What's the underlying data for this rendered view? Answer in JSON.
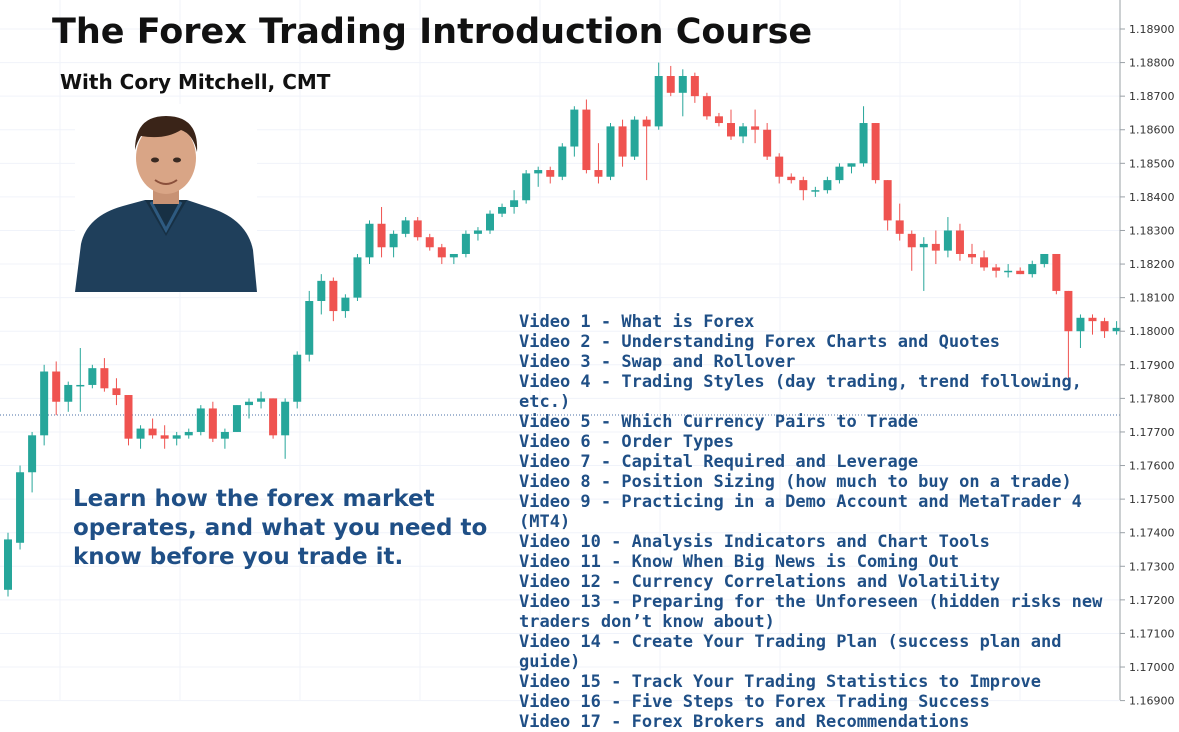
{
  "title": "The Forex Trading Introduction Course",
  "subtitle": "With Cory Mitchell, CMT",
  "tagline": "Learn how the forex market operates, and what you need to know before you trade it.",
  "videos": [
    "Video 1 - What is Forex",
    "Video 2 - Understanding Forex Charts and Quotes",
    "Video 3 - Swap and Rollover",
    "Video 4 - Trading Styles (day trading, trend following, etc.)",
    "Video 5 - Which Currency Pairs to Trade",
    "Video 6 - Order Types",
    "Video 7 - Capital Required and Leverage",
    "Video 8 - Position Sizing (how much to buy on a trade)",
    "Video 9 - Practicing in a Demo Account and MetaTrader 4 (MT4)",
    "Video 10 - Analysis Indicators and Chart Tools",
    "Video 11 - Know When Big News is Coming Out",
    "Video 12 - Currency Correlations and Volatility",
    "Video 13 - Preparing for the Unforeseen (hidden risks new traders don’t know about)",
    "Video 14 - Create Your Trading Plan (success plan and guide)",
    "Video 15 - Track Your Trading Statistics to Improve",
    "Video 16 - Five Steps to Forex Trading Success",
    "Video 17 - Forex Brokers and Recommendations"
  ],
  "colors": {
    "up": "#26a69a",
    "down": "#ef5350",
    "text": "#1f4f86",
    "grid": "#f0f3fa"
  },
  "chart_data": {
    "type": "candlestick",
    "y_ticks": [
      "1.18900",
      "1.18800",
      "1.18700",
      "1.18600",
      "1.18500",
      "1.18400",
      "1.18300",
      "1.18200",
      "1.18100",
      "1.18000",
      "1.17900",
      "1.17800",
      "1.17700",
      "1.17600",
      "1.17500",
      "1.17400",
      "1.17300",
      "1.17200",
      "1.17100",
      "1.17000",
      "1.16900"
    ],
    "ylim": [
      1.169,
      1.1895
    ],
    "reference_line": 1.1775,
    "candles": [
      [
        1.1723,
        1.174,
        1.1721,
        1.1738
      ],
      [
        1.1737,
        1.176,
        1.1735,
        1.1758
      ],
      [
        1.1758,
        1.177,
        1.1752,
        1.1769
      ],
      [
        1.1769,
        1.179,
        1.1766,
        1.1788
      ],
      [
        1.1788,
        1.1791,
        1.1775,
        1.1779
      ],
      [
        1.1779,
        1.1785,
        1.1776,
        1.1784
      ],
      [
        1.1784,
        1.1795,
        1.1776,
        1.1784
      ],
      [
        1.1784,
        1.179,
        1.1783,
        1.1789
      ],
      [
        1.1789,
        1.1792,
        1.1782,
        1.1783
      ],
      [
        1.1783,
        1.1786,
        1.1778,
        1.1781
      ],
      [
        1.1781,
        1.1781,
        1.1766,
        1.1768
      ],
      [
        1.1768,
        1.1772,
        1.1765,
        1.1771
      ],
      [
        1.1771,
        1.1774,
        1.1768,
        1.1769
      ],
      [
        1.1769,
        1.1772,
        1.1765,
        1.1768
      ],
      [
        1.1768,
        1.177,
        1.1766,
        1.1769
      ],
      [
        1.1769,
        1.1771,
        1.1768,
        1.177
      ],
      [
        1.177,
        1.1778,
        1.1769,
        1.1777
      ],
      [
        1.1777,
        1.1779,
        1.1767,
        1.1768
      ],
      [
        1.1768,
        1.1771,
        1.1765,
        1.177
      ],
      [
        1.177,
        1.1778,
        1.177,
        1.1778
      ],
      [
        1.1778,
        1.178,
        1.1774,
        1.1779
      ],
      [
        1.1779,
        1.1782,
        1.1777,
        1.178
      ],
      [
        1.178,
        1.178,
        1.1768,
        1.1769
      ],
      [
        1.1769,
        1.178,
        1.1762,
        1.1779
      ],
      [
        1.1779,
        1.1794,
        1.1777,
        1.1793
      ],
      [
        1.1793,
        1.1812,
        1.1791,
        1.1809
      ],
      [
        1.1809,
        1.1817,
        1.1805,
        1.1815
      ],
      [
        1.1815,
        1.1816,
        1.1803,
        1.1806
      ],
      [
        1.1806,
        1.1811,
        1.1804,
        1.181
      ],
      [
        1.181,
        1.1823,
        1.1809,
        1.1822
      ],
      [
        1.1822,
        1.1833,
        1.182,
        1.1832
      ],
      [
        1.1832,
        1.1837,
        1.1822,
        1.1825
      ],
      [
        1.1825,
        1.183,
        1.1822,
        1.1829
      ],
      [
        1.1829,
        1.1834,
        1.1828,
        1.1833
      ],
      [
        1.1833,
        1.1834,
        1.1827,
        1.1828
      ],
      [
        1.1828,
        1.1829,
        1.1824,
        1.1825
      ],
      [
        1.1825,
        1.1826,
        1.182,
        1.1822
      ],
      [
        1.1822,
        1.1823,
        1.182,
        1.1823
      ],
      [
        1.1823,
        1.183,
        1.1822,
        1.1829
      ],
      [
        1.1829,
        1.1831,
        1.1827,
        1.183
      ],
      [
        1.183,
        1.1836,
        1.1829,
        1.1835
      ],
      [
        1.1835,
        1.1838,
        1.1834,
        1.1837
      ],
      [
        1.1837,
        1.1842,
        1.1835,
        1.1839
      ],
      [
        1.1839,
        1.1848,
        1.1838,
        1.1847
      ],
      [
        1.1847,
        1.1849,
        1.1843,
        1.1848
      ],
      [
        1.1848,
        1.1849,
        1.1844,
        1.1846
      ],
      [
        1.1846,
        1.1856,
        1.1845,
        1.1855
      ],
      [
        1.1855,
        1.1867,
        1.1852,
        1.1866
      ],
      [
        1.1866,
        1.1869,
        1.1847,
        1.1848
      ],
      [
        1.1848,
        1.1856,
        1.1844,
        1.1846
      ],
      [
        1.1846,
        1.1862,
        1.1845,
        1.1861
      ],
      [
        1.1861,
        1.1863,
        1.1849,
        1.1852
      ],
      [
        1.1852,
        1.1864,
        1.1851,
        1.1863
      ],
      [
        1.1863,
        1.1864,
        1.1845,
        1.1861
      ],
      [
        1.1861,
        1.188,
        1.186,
        1.1876
      ],
      [
        1.1876,
        1.1879,
        1.187,
        1.1871
      ],
      [
        1.1871,
        1.1878,
        1.1864,
        1.1876
      ],
      [
        1.1876,
        1.1877,
        1.1868,
        1.187
      ],
      [
        1.187,
        1.1871,
        1.1863,
        1.1864
      ],
      [
        1.1864,
        1.1865,
        1.1861,
        1.1862
      ],
      [
        1.1862,
        1.1866,
        1.1857,
        1.1858
      ],
      [
        1.1858,
        1.1862,
        1.1856,
        1.1861
      ],
      [
        1.1861,
        1.1866,
        1.1856,
        1.186
      ],
      [
        1.186,
        1.1862,
        1.1851,
        1.1852
      ],
      [
        1.1852,
        1.1853,
        1.1844,
        1.1846
      ],
      [
        1.1846,
        1.1847,
        1.1844,
        1.1845
      ],
      [
        1.1845,
        1.1846,
        1.1839,
        1.1842
      ],
      [
        1.1842,
        1.1843,
        1.184,
        1.1842
      ],
      [
        1.1842,
        1.1846,
        1.1841,
        1.1845
      ],
      [
        1.1845,
        1.185,
        1.1844,
        1.1849
      ],
      [
        1.1849,
        1.185,
        1.1847,
        1.185
      ],
      [
        1.185,
        1.1867,
        1.1849,
        1.1862
      ],
      [
        1.1862,
        1.1862,
        1.1844,
        1.1845
      ],
      [
        1.1845,
        1.1845,
        1.183,
        1.1833
      ],
      [
        1.1833,
        1.1838,
        1.1827,
        1.1829
      ],
      [
        1.1829,
        1.183,
        1.1818,
        1.1825
      ],
      [
        1.1825,
        1.1828,
        1.1812,
        1.1826
      ],
      [
        1.1826,
        1.183,
        1.182,
        1.1824
      ],
      [
        1.1824,
        1.1834,
        1.1822,
        1.183
      ],
      [
        1.183,
        1.1832,
        1.1821,
        1.1823
      ],
      [
        1.1823,
        1.1826,
        1.182,
        1.1822
      ],
      [
        1.1822,
        1.1824,
        1.1818,
        1.1819
      ],
      [
        1.1819,
        1.182,
        1.1816,
        1.1818
      ],
      [
        1.1818,
        1.182,
        1.1816,
        1.1818
      ],
      [
        1.1818,
        1.1819,
        1.1817,
        1.1817
      ],
      [
        1.1817,
        1.1821,
        1.1816,
        1.182
      ],
      [
        1.182,
        1.1823,
        1.1819,
        1.1823
      ],
      [
        1.1823,
        1.1823,
        1.1811,
        1.1812
      ],
      [
        1.1812,
        1.1812,
        1.1786,
        1.18
      ],
      [
        1.18,
        1.1805,
        1.1795,
        1.1804
      ],
      [
        1.1804,
        1.1805,
        1.1799,
        1.1803
      ],
      [
        1.1803,
        1.1804,
        1.1798,
        1.18
      ],
      [
        1.18,
        1.1803,
        1.1799,
        1.1801
      ]
    ]
  }
}
